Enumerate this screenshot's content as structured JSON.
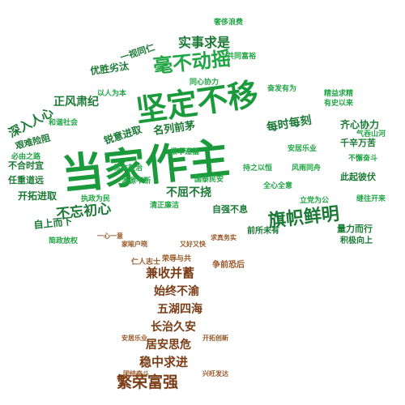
{
  "colors": {
    "green_dark": "#1b7a35",
    "green": "#22a645",
    "green_light": "#33b552",
    "brown": "#7a3d16",
    "brown_light": "#9a5a2a"
  },
  "crown_words": {
    "w1": "当家作主",
    "w2": "坚定不移",
    "w3": "毫不动摇",
    "w4": "旗帜鲜明",
    "w5": "实事求是",
    "w6": "深入人心",
    "w7": "正风肃纪",
    "w8": "不忘初心",
    "w9": "开拓进取",
    "w10": "不屈不挠",
    "w11": "名列前茅",
    "w12": "每时每刻",
    "w13": "齐心协力",
    "w14": "自上而下",
    "w15": "前所未有",
    "w16": "量力而行",
    "w17": "积极向上",
    "w18": "优胜劣汰",
    "w19": "一视同仁",
    "w20": "锐意进取",
    "w21": "艰难险阻",
    "w22": "不合时宜",
    "w23": "任重道远",
    "w24": "此起彼伏",
    "w25": "自强不息",
    "w26": "千辛万苦",
    "w27": "同心协力",
    "w28": "全心全意",
    "w29": "有史以来",
    "w30": "安居乐业",
    "w31": "简政放权",
    "w32": "奢侈浪费",
    "w33": "精益求精",
    "w34": "必由之路",
    "w35": "清正廉洁",
    "w36": "根本遵循",
    "w37": "气吞山河",
    "w38": "持之以恒",
    "w39": "不懈奋斗",
    "w40": "标本兼治",
    "w41": "奋发有为",
    "w42": "风雨同舟",
    "w43": "以人为本",
    "w44": "继往开来",
    "w45": "源源不断",
    "w46": "共同富裕",
    "w47": "和谐社会",
    "w48": "国泰民安",
    "w49": "立党为公",
    "w50": "执政为民"
  },
  "trunk_words": {
    "t1": "兼收并蓄",
    "t2": "始终不渝",
    "t3": "五湖四海",
    "t4": "长治久安",
    "t5": "居安思危",
    "t6": "稳中求进",
    "t7": "繁荣富强",
    "t8": "荣辱与共",
    "t9": "争前恐后",
    "t10": "仁人志士",
    "t11": "家喻户晓",
    "t12": "求真务实",
    "t13": "又好又快",
    "t14": "一心一意",
    "t15": "安居乐业",
    "t16": "开拓创新",
    "t17": "团结奋斗",
    "t18": "兴旺发达"
  }
}
